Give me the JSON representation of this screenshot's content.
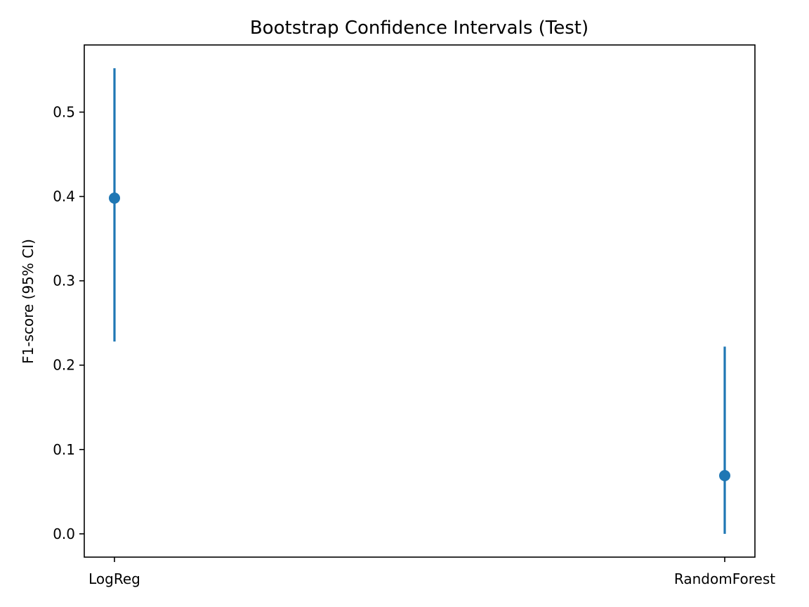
{
  "chart_data": {
    "type": "errorbar",
    "title": "Bootstrap Confidence Intervals (Test)",
    "xlabel": "",
    "ylabel": "F1-score (95% CI)",
    "categories": [
      "LogReg",
      "RandomForest"
    ],
    "points": [
      {
        "category": "LogReg",
        "value": 0.398,
        "ci_low": 0.228,
        "ci_high": 0.552
      },
      {
        "category": "RandomForest",
        "value": 0.069,
        "ci_low": 0.0,
        "ci_high": 0.222
      }
    ],
    "ylim": [
      -0.0276,
      0.5796
    ],
    "yticks": [
      0.0,
      0.1,
      0.2,
      0.3,
      0.4,
      0.5
    ],
    "ytick_labels": [
      "0.0",
      "0.1",
      "0.2",
      "0.3",
      "0.4",
      "0.5"
    ],
    "grid": false,
    "color": "#1f77b4"
  }
}
